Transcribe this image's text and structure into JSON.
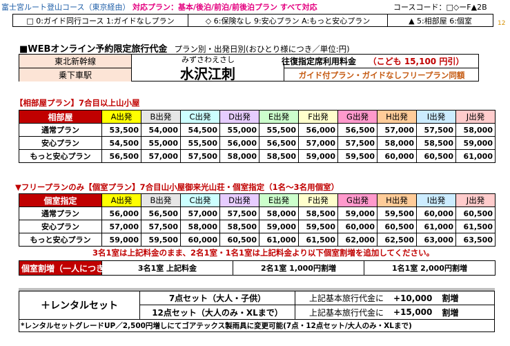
{
  "header": {
    "route": "富士宮ルート登山コース（東京経由）",
    "plans": "対応プラン：基本/後泊/前泊/前後泊プラン すべて対応",
    "code": "コースコード：□◇ーF▲2B",
    "page_number": "12"
  },
  "legend": {
    "guide": "□ 0:ガイド同行コース 1:ガイドなしプラン",
    "insurance": "◇ 6:保険なし 9:安心プラン A:もっと安心プラン",
    "room": "▲ 5:相部屋 6:個室"
  },
  "web": {
    "title_prefix": "■WEBオンライン予約限定旅行代金",
    "title_suffix": "プラン別・出発日別(おひとり様につき／単位:円)",
    "line": "東北新幹線",
    "station_label": "乗下車駅",
    "station_reading": "みずさわえさし",
    "station_name": "水沢江刺",
    "fare_label": "往復指定席利用料金",
    "child_fare": "（こども 15,100 円引）",
    "same_price": "ガイド付プラン・ガイドなしフリープラン同額"
  },
  "shared": {
    "section_title": "【相部屋プラン】7合目以上山小屋",
    "corner": "相部屋",
    "departures": [
      "A出発",
      "B出発",
      "C出発",
      "D出発",
      "E出発",
      "F出発",
      "G出発",
      "H出発",
      "I出発",
      "J出発"
    ],
    "rows": [
      {
        "name": "通常プラン",
        "prices": [
          "53,500",
          "54,000",
          "54,500",
          "55,000",
          "55,500",
          "56,000",
          "56,500",
          "57,000",
          "57,500",
          "58,000"
        ]
      },
      {
        "name": "安心プラン",
        "prices": [
          "54,500",
          "55,000",
          "55,500",
          "56,000",
          "56,500",
          "57,000",
          "57,500",
          "58,000",
          "58,500",
          "59,000"
        ]
      },
      {
        "name": "もっと安心プラン",
        "prices": [
          "56,500",
          "57,000",
          "57,500",
          "58,000",
          "58,500",
          "59,000",
          "59,500",
          "60,000",
          "60,500",
          "61,000"
        ]
      }
    ]
  },
  "private": {
    "section_title": "▼フリープランのみ【個室プラン】7合目山小屋御来光山荘・個室指定（1名～3名用個室）",
    "corner": "個室指定",
    "rows": [
      {
        "name": "通常プラン",
        "prices": [
          "56,000",
          "56,500",
          "57,000",
          "57,500",
          "58,000",
          "58,500",
          "59,000",
          "59,500",
          "60,000",
          "60,500"
        ]
      },
      {
        "name": "安心プラン",
        "prices": [
          "57,000",
          "57,500",
          "58,000",
          "58,500",
          "59,000",
          "59,500",
          "60,000",
          "60,500",
          "61,000",
          "61,500"
        ]
      },
      {
        "name": "もっと安心プラン",
        "prices": [
          "59,000",
          "59,500",
          "60,000",
          "60,500",
          "61,000",
          "61,500",
          "62,000",
          "62,500",
          "63,000",
          "63,500"
        ]
      }
    ],
    "note": "3名1室は上記料金のまま、2名1室・1名1室は上記料金より以下個室割増を追加してください。",
    "surcharge_label": "個室割増（一人につき）",
    "surcharges": [
      "3名1室 上記料金",
      "2名1室 1,000円割増",
      "1名1室 2,000円割増"
    ]
  },
  "rental": {
    "label": "＋レンタルセット",
    "items": [
      {
        "name": "7点セット（大人・子供）",
        "desc": "上記基本旅行代金に",
        "price": "+10,000",
        "unit": "割増"
      },
      {
        "name": "12点セット（大人のみ・XLまで）",
        "desc": "上記基本旅行代金に",
        "price": "+15,000",
        "unit": "割増"
      }
    ],
    "note": "*レンタルセットグレードUP／2,500円増しにてゴアテックス製雨具に変更可能(7点・12点セット/大人のみ・XLまで)"
  },
  "colors": {
    "red": "#c00000",
    "dep_colors": [
      "#ffff00",
      "#e6e6e6",
      "#ccffff",
      "#e6ccff",
      "#ccffcc",
      "#ffffcc",
      "#ff99cc",
      "#ffcc99",
      "#ccecff",
      "#ffcccc"
    ]
  }
}
